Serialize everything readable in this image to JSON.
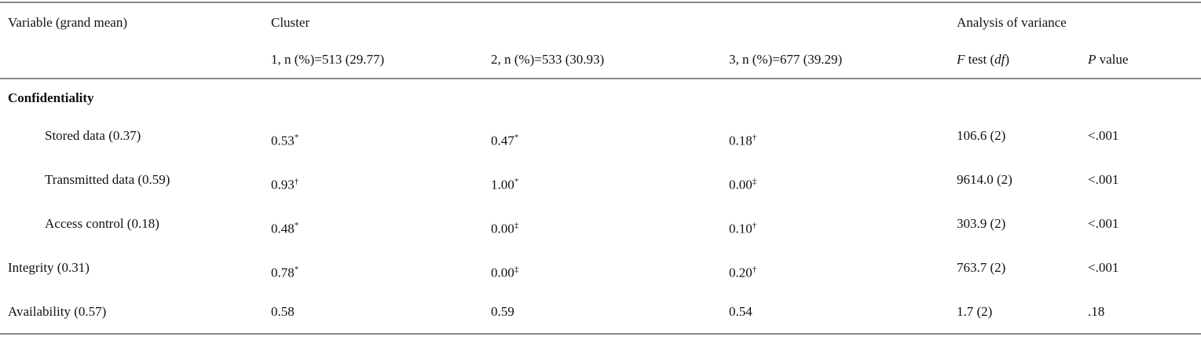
{
  "header": {
    "variable": "Variable (grand mean)",
    "cluster": "Cluster",
    "anova": "Analysis of variance",
    "clusters": [
      "1, n (%)=513 (29.77)",
      "2, n (%)=533 (30.93)",
      "3, n (%)=677 (39.29)"
    ],
    "f_test": [
      "F",
      " test (",
      "df",
      ")"
    ],
    "p_value": [
      "P",
      " value"
    ]
  },
  "rows": [
    {
      "label": "Confidentiality",
      "section": true
    },
    {
      "label": "Stored data (0.37)",
      "indent": true,
      "clusters": [
        {
          "value": "0.53",
          "mark": "*"
        },
        {
          "value": "0.47",
          "mark": "*"
        },
        {
          "value": "0.18",
          "mark": "†"
        }
      ],
      "f_test": "106.6 (2)",
      "p_value": "<.001"
    },
    {
      "label": "Transmitted data (0.59)",
      "indent": true,
      "clusters": [
        {
          "value": "0.93",
          "mark": "†"
        },
        {
          "value": "1.00",
          "mark": "*"
        },
        {
          "value": "0.00",
          "mark": "‡"
        }
      ],
      "f_test": "9614.0 (2)",
      "p_value": "<.001"
    },
    {
      "label": "Access control (0.18)",
      "indent": true,
      "clusters": [
        {
          "value": "0.48",
          "mark": "*"
        },
        {
          "value": "0.00",
          "mark": "‡"
        },
        {
          "value": "0.10",
          "mark": "†"
        }
      ],
      "f_test": "303.9 (2)",
      "p_value": "<.001"
    },
    {
      "label": "Integrity (0.31)",
      "clusters": [
        {
          "value": "0.78",
          "mark": "*"
        },
        {
          "value": "0.00",
          "mark": "‡"
        },
        {
          "value": "0.20",
          "mark": "†"
        }
      ],
      "f_test": "763.7 (2)",
      "p_value": "<.001"
    },
    {
      "label": "Availability (0.57)",
      "clusters": [
        {
          "value": "0.58"
        },
        {
          "value": "0.59"
        },
        {
          "value": "0.54"
        }
      ],
      "f_test": "1.7 (2)",
      "p_value": ".18"
    }
  ]
}
